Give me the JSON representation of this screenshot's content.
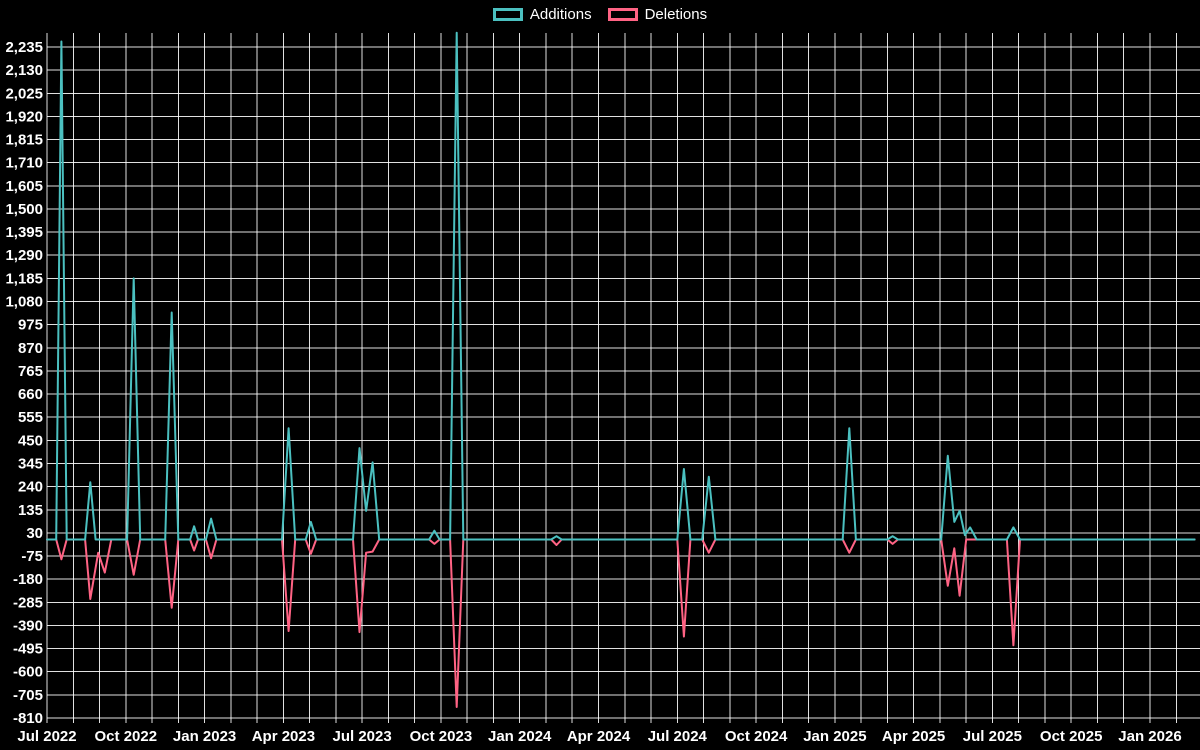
{
  "chart_data": {
    "type": "line",
    "title": "",
    "legend_position": "top",
    "background": "#000000",
    "grid_color": "#ffffff",
    "text_color": "#ffffff",
    "x_axis": {
      "tick_labels": [
        "Jul 2022",
        "Oct 2022",
        "Jan 2023",
        "Apr 2023",
        "Jul 2023",
        "Oct 2023",
        "Jan 2024",
        "Apr 2024",
        "Jul 2024",
        "Oct 2024",
        "Jan 2025",
        "Apr 2025",
        "Jul 2025",
        "Oct 2025",
        "Jan 2026"
      ],
      "tick_month_step": 3,
      "grid_month_step": 1,
      "months_span": 43.7
    },
    "y_axis": {
      "min": -810,
      "max": 2235,
      "step": 105,
      "tick_labels": [
        "2,235",
        "2,130",
        "2,025",
        "1,920",
        "1,815",
        "1,710",
        "1,605",
        "1,500",
        "1,395",
        "1,290",
        "1,185",
        "1,080",
        "975",
        "870",
        "765",
        "660",
        "555",
        "450",
        "345",
        "240",
        "135",
        "30",
        "-75",
        "-180",
        "-285",
        "-390",
        "-495",
        "-600",
        "-705",
        "-810"
      ]
    },
    "series": [
      {
        "name": "Additions",
        "color": "#4bc0c0",
        "points": [
          [
            0,
            0
          ],
          [
            0.35,
            0
          ],
          [
            0.55,
            2260
          ],
          [
            0.75,
            0
          ],
          [
            1.45,
            0
          ],
          [
            1.65,
            260
          ],
          [
            1.85,
            0
          ],
          [
            3.05,
            0
          ],
          [
            3.3,
            1185
          ],
          [
            3.55,
            0
          ],
          [
            4.5,
            0
          ],
          [
            4.75,
            1030
          ],
          [
            5.0,
            0
          ],
          [
            5.45,
            0
          ],
          [
            5.6,
            60
          ],
          [
            5.75,
            0
          ],
          [
            6.05,
            0
          ],
          [
            6.25,
            95
          ],
          [
            6.45,
            0
          ],
          [
            8.95,
            0
          ],
          [
            9.2,
            505
          ],
          [
            9.45,
            0
          ],
          [
            9.85,
            0
          ],
          [
            10.05,
            80
          ],
          [
            10.25,
            0
          ],
          [
            11.65,
            0
          ],
          [
            11.9,
            415
          ],
          [
            12.15,
            130
          ],
          [
            12.4,
            350
          ],
          [
            12.65,
            0
          ],
          [
            14.55,
            0
          ],
          [
            14.75,
            40
          ],
          [
            14.95,
            0
          ],
          [
            15.35,
            0
          ],
          [
            15.6,
            2300
          ],
          [
            15.85,
            0
          ],
          [
            19.2,
            0
          ],
          [
            19.4,
            15
          ],
          [
            19.6,
            0
          ],
          [
            24.0,
            0
          ],
          [
            24.25,
            320
          ],
          [
            24.5,
            0
          ],
          [
            24.95,
            0
          ],
          [
            25.2,
            285
          ],
          [
            25.45,
            0
          ],
          [
            30.3,
            0
          ],
          [
            30.55,
            505
          ],
          [
            30.8,
            0
          ],
          [
            32.0,
            0
          ],
          [
            32.2,
            15
          ],
          [
            32.4,
            0
          ],
          [
            34.05,
            0
          ],
          [
            34.3,
            380
          ],
          [
            34.55,
            80
          ],
          [
            34.75,
            130
          ],
          [
            34.95,
            20
          ],
          [
            35.15,
            55
          ],
          [
            35.4,
            0
          ],
          [
            36.55,
            0
          ],
          [
            36.8,
            55
          ],
          [
            37.05,
            0
          ],
          [
            43.7,
            0
          ]
        ]
      },
      {
        "name": "Deletions",
        "color": "#ff6384",
        "points": [
          [
            0,
            0
          ],
          [
            0.35,
            0
          ],
          [
            0.55,
            -90
          ],
          [
            0.75,
            0
          ],
          [
            1.45,
            0
          ],
          [
            1.65,
            -270
          ],
          [
            1.95,
            -60
          ],
          [
            2.2,
            -150
          ],
          [
            2.45,
            0
          ],
          [
            3.05,
            0
          ],
          [
            3.3,
            -160
          ],
          [
            3.55,
            0
          ],
          [
            4.5,
            0
          ],
          [
            4.75,
            -310
          ],
          [
            5.0,
            0
          ],
          [
            5.45,
            0
          ],
          [
            5.6,
            -50
          ],
          [
            5.75,
            0
          ],
          [
            6.05,
            0
          ],
          [
            6.25,
            -85
          ],
          [
            6.45,
            0
          ],
          [
            8.95,
            0
          ],
          [
            9.2,
            -415
          ],
          [
            9.45,
            0
          ],
          [
            9.85,
            0
          ],
          [
            10.05,
            -65
          ],
          [
            10.25,
            0
          ],
          [
            11.65,
            0
          ],
          [
            11.9,
            -420
          ],
          [
            12.15,
            -60
          ],
          [
            12.4,
            -55
          ],
          [
            12.65,
            0
          ],
          [
            14.55,
            0
          ],
          [
            14.75,
            -20
          ],
          [
            14.95,
            0
          ],
          [
            15.35,
            0
          ],
          [
            15.6,
            -760
          ],
          [
            15.85,
            0
          ],
          [
            19.2,
            0
          ],
          [
            19.4,
            -25
          ],
          [
            19.6,
            0
          ],
          [
            24.0,
            0
          ],
          [
            24.25,
            -440
          ],
          [
            24.5,
            0
          ],
          [
            24.95,
            0
          ],
          [
            25.2,
            -60
          ],
          [
            25.45,
            0
          ],
          [
            30.3,
            0
          ],
          [
            30.55,
            -60
          ],
          [
            30.8,
            0
          ],
          [
            32.0,
            0
          ],
          [
            32.2,
            -20
          ],
          [
            32.4,
            0
          ],
          [
            34.05,
            0
          ],
          [
            34.3,
            -210
          ],
          [
            34.55,
            -40
          ],
          [
            34.75,
            -255
          ],
          [
            35.0,
            0
          ],
          [
            36.55,
            0
          ],
          [
            36.8,
            -480
          ],
          [
            37.05,
            0
          ],
          [
            43.7,
            0
          ]
        ]
      }
    ]
  }
}
